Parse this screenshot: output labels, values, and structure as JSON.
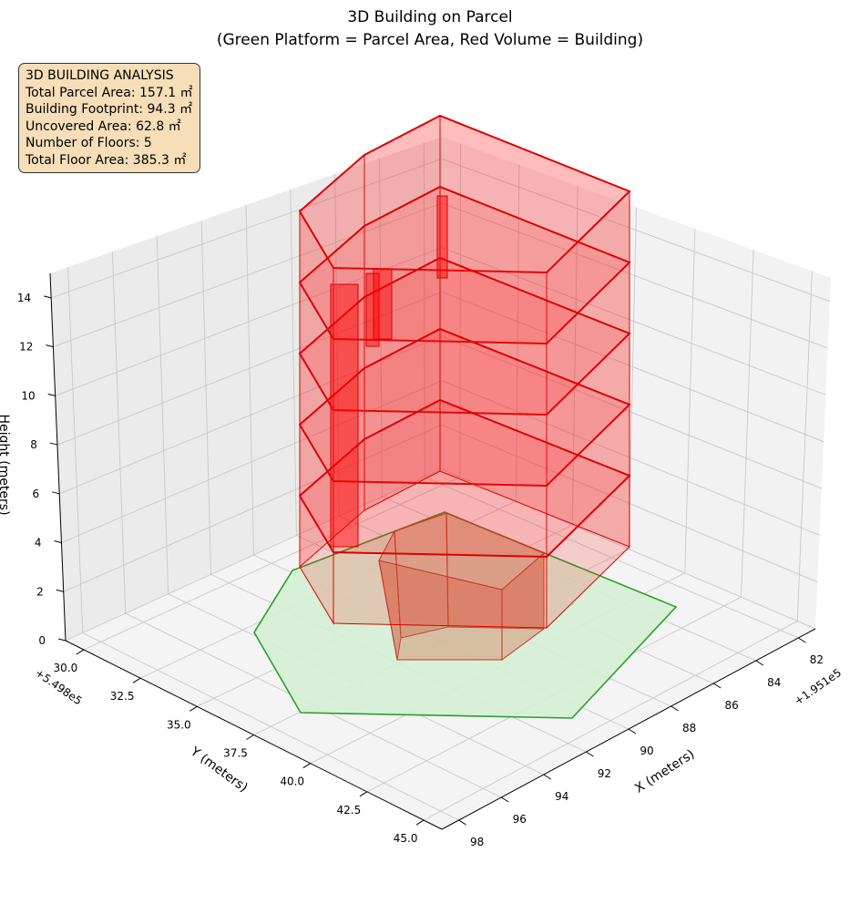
{
  "chart_data": {
    "type": "3d-polygon",
    "title": "3D Building on Parcel",
    "subtitle": "(Green Platform = Parcel Area, Red Volume = Building)",
    "xlabel": "X (meters)",
    "ylabel": "Y (meters)",
    "zlabel": "Height (meters)",
    "x_offset": "+1.951e5",
    "y_offset": "+5.498e5",
    "x_ticks": [
      "82",
      "84",
      "86",
      "88",
      "90",
      "92",
      "94",
      "96",
      "98"
    ],
    "y_ticks": [
      "30.0",
      "32.5",
      "35.0",
      "37.5",
      "40.0",
      "42.5",
      "45.0"
    ],
    "z_ticks": [
      "0",
      "2",
      "4",
      "6",
      "8",
      "10",
      "12",
      "14"
    ],
    "xlim": [
      81.2,
      98.8
    ],
    "ylim": [
      29.2,
      45.8
    ],
    "zlim": [
      0,
      15
    ],
    "grid": true,
    "series": [
      {
        "name": "Parcel Area",
        "color": "#2ca02c",
        "fill": "#d4f0d4"
      },
      {
        "name": "Building",
        "color": "#dd0000",
        "fill": "#ff0000",
        "floors": 5
      }
    ],
    "annotation": {
      "heading": "3D BUILDING ANALYSIS",
      "lines": [
        "Total Parcel Area: 157.1 ㎡",
        "Building Footprint: 94.3 ㎡",
        "Uncovered Area: 62.8 ㎡",
        "Number of Floors: 5",
        "Total Floor Area: 385.3 ㎡"
      ]
    }
  }
}
